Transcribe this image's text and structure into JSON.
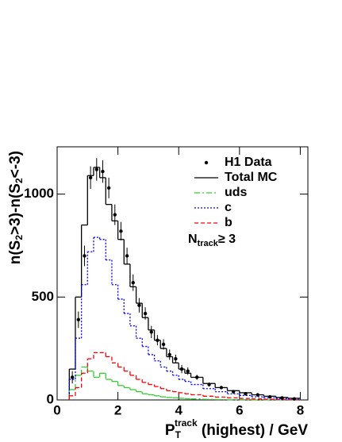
{
  "chart_data": {
    "type": "histogram",
    "xlabel": [
      "P",
      "T",
      "track",
      " (highest)  / GeV"
    ],
    "ylabel": [
      "n(S",
      "2",
      ">3)-n(S",
      "2",
      "<-3)"
    ],
    "annotation": [
      "N",
      "track",
      "≥ 3"
    ],
    "xlim": [
      0,
      8.25
    ],
    "ylim": [
      0,
      1230
    ],
    "xticks": [
      0,
      2,
      4,
      6,
      8
    ],
    "yticks": [
      0,
      500,
      1000
    ],
    "legend": "upper right",
    "bins": [
      0.4,
      0.6,
      0.8,
      1.0,
      1.2,
      1.4,
      1.6,
      1.8,
      2.0,
      2.2,
      2.4,
      2.6,
      2.8,
      3.0,
      3.2,
      3.4,
      3.6,
      3.8,
      4.0,
      4.2,
      4.4,
      4.8,
      5.2,
      5.6,
      6.0,
      6.4,
      6.8,
      7.2,
      7.6,
      8.0
    ],
    "data": {
      "name": "H1 Data",
      "color": "#000000",
      "x": [
        0.5,
        0.7,
        0.9,
        1.1,
        1.3,
        1.5,
        1.7,
        1.9,
        2.1,
        2.3,
        2.5,
        2.7,
        2.9,
        3.1,
        3.3,
        3.5,
        3.7,
        3.9,
        4.1,
        4.3,
        4.6,
        5.0,
        5.4,
        5.8,
        6.2,
        6.6,
        7.0,
        7.4,
        7.8
      ],
      "values": [
        110,
        390,
        700,
        1080,
        1120,
        1110,
        1030,
        900,
        820,
        700,
        570,
        460,
        420,
        330,
        290,
        270,
        220,
        200,
        150,
        140,
        110,
        75,
        60,
        40,
        30,
        25,
        15,
        10,
        5
      ],
      "errors": [
        30,
        40,
        50,
        55,
        55,
        55,
        50,
        50,
        45,
        40,
        40,
        35,
        30,
        30,
        25,
        25,
        25,
        20,
        20,
        18,
        12,
        10,
        8,
        7,
        6,
        5,
        4,
        4,
        3
      ]
    },
    "series": [
      {
        "name": "Total MC",
        "color": "#000000",
        "style": "solid",
        "values": [
          150,
          500,
          850,
          1090,
          1130,
          1080,
          950,
          870,
          780,
          660,
          550,
          470,
          400,
          340,
          290,
          250,
          210,
          180,
          150,
          130,
          110,
          80,
          60,
          45,
          35,
          25,
          18,
          12,
          8
        ]
      },
      {
        "name": "uds",
        "color": "#33cc33",
        "style": "dashdot",
        "values": [
          50,
          120,
          160,
          140,
          110,
          130,
          100,
          90,
          70,
          60,
          50,
          40,
          30,
          25,
          20,
          15,
          12,
          10,
          8,
          6,
          5,
          3,
          2,
          1,
          1,
          0,
          0,
          0,
          0
        ]
      },
      {
        "name": "c",
        "color": "#0000ff",
        "style": "dotted",
        "values": [
          100,
          300,
          560,
          720,
          790,
          780,
          680,
          560,
          490,
          420,
          360,
          300,
          260,
          220,
          190,
          160,
          140,
          120,
          100,
          90,
          75,
          55,
          40,
          30,
          22,
          15,
          10,
          7,
          5
        ]
      },
      {
        "name": "b",
        "color": "#ff0000",
        "style": "dashed",
        "values": [
          20,
          60,
          130,
          200,
          230,
          230,
          210,
          180,
          160,
          140,
          120,
          100,
          85,
          75,
          65,
          55,
          45,
          40,
          35,
          30,
          25,
          18,
          14,
          10,
          7,
          5,
          3,
          2,
          1
        ]
      }
    ]
  }
}
